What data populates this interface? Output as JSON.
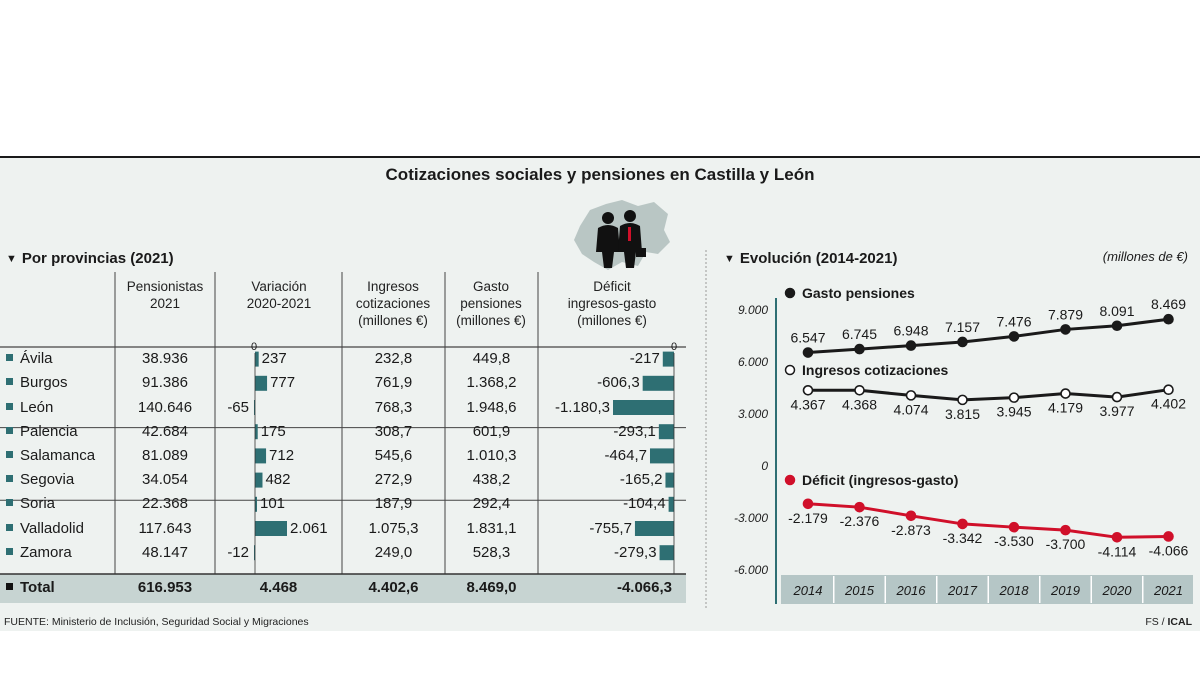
{
  "title": "Cotizaciones sociales y pensiones en Castilla y León",
  "table_section": {
    "title": "Por provincias (2021)",
    "headers": [
      [
        "Pensionistas",
        "2021"
      ],
      [
        "Variación",
        "2020-2021"
      ],
      [
        "Ingresos",
        "cotizaciones",
        "(millones €)"
      ],
      [
        "Gasto",
        "pensiones",
        "(millones €)"
      ],
      [
        "Déficit",
        "ingresos-gasto",
        "(millones €)"
      ]
    ],
    "zero_label": "0",
    "rows": [
      {
        "prov": "Ávila",
        "pens": "38.936",
        "var": "237",
        "var_num": 237,
        "ing": "232,8",
        "gasto": "449,8",
        "def": "-217",
        "def_num": -217
      },
      {
        "prov": "Burgos",
        "pens": "91.386",
        "var": "777",
        "var_num": 777,
        "ing": "761,9",
        "gasto": "1.368,2",
        "def": "-606,3",
        "def_num": -606.3
      },
      {
        "prov": "León",
        "pens": "140.646",
        "var": "-65",
        "var_num": -65,
        "ing": "768,3",
        "gasto": "1.948,6",
        "def": "-1.180,3",
        "def_num": -1180.3
      },
      {
        "prov": "Palencia",
        "pens": "42.684",
        "var": "175",
        "var_num": 175,
        "ing": "308,7",
        "gasto": "601,9",
        "def": "-293,1",
        "def_num": -293.1
      },
      {
        "prov": "Salamanca",
        "pens": "81.089",
        "var": "712",
        "var_num": 712,
        "ing": "545,6",
        "gasto": "1.010,3",
        "def": "-464,7",
        "def_num": -464.7
      },
      {
        "prov": "Segovia",
        "pens": "34.054",
        "var": "482",
        "var_num": 482,
        "ing": "272,9",
        "gasto": "438,2",
        "def": "-165,2",
        "def_num": -165.2
      },
      {
        "prov": "Soria",
        "pens": "22.368",
        "var": "101",
        "var_num": 101,
        "ing": "187,9",
        "gasto": "292,4",
        "def": "-104,4",
        "def_num": -104.4
      },
      {
        "prov": "Valladolid",
        "pens": "117.643",
        "var": "2.061",
        "var_num": 2061,
        "ing": "1.075,3",
        "gasto": "1.831,1",
        "def": "-755,7",
        "def_num": -755.7
      },
      {
        "prov": "Zamora",
        "pens": "48.147",
        "var": "-12",
        "var_num": -12,
        "ing": "249,0",
        "gasto": "528,3",
        "def": "-279,3",
        "def_num": -279.3
      }
    ],
    "total": {
      "prov": "Total",
      "pens": "616.953",
      "var": "4.468",
      "ing": "4.402,6",
      "gasto": "8.469,0",
      "def": "-4.066,3"
    }
  },
  "chart_section": {
    "title": "Evolución (2014-2021)",
    "units": "(millones de €)"
  },
  "chart_data": {
    "type": "line",
    "x": [
      "2014",
      "2015",
      "2016",
      "2017",
      "2018",
      "2019",
      "2020",
      "2021"
    ],
    "series": [
      {
        "name": "Gasto pensiones",
        "values": [
          6547,
          6745,
          6948,
          7157,
          7476,
          7879,
          8091,
          8469
        ],
        "labels": [
          "6.547",
          "6.745",
          "6.948",
          "7.157",
          "7.476",
          "7.879",
          "8.091",
          "8.469"
        ],
        "color": "#1a1a1a",
        "marker": "filled"
      },
      {
        "name": "Ingresos cotizaciones",
        "values": [
          4367,
          4368,
          4074,
          3815,
          3945,
          4179,
          3977,
          4402
        ],
        "labels": [
          "4.367",
          "4.368",
          "4.074",
          "3.815",
          "3.945",
          "4.179",
          "3.977",
          "4.402"
        ],
        "color": "#1a1a1a",
        "marker": "open"
      },
      {
        "name": "Déficit (ingresos-gasto)",
        "values": [
          -2179,
          -2376,
          -2873,
          -3342,
          -3530,
          -3700,
          -4114,
          -4066
        ],
        "labels": [
          "-2.179",
          "-2.376",
          "-2.873",
          "-3.342",
          "-3.530",
          "-3.700",
          "-4.114",
          "-4.066"
        ],
        "color": "#d0102a",
        "marker": "filled"
      }
    ],
    "yticks": [
      9000,
      6000,
      3000,
      0,
      -3000,
      -6000
    ],
    "ytick_labels": [
      "9.000",
      "6.000",
      "3.000",
      "0",
      "-3.000",
      "-6.000"
    ],
    "ylim": [
      -6000,
      9000
    ],
    "grid": false
  },
  "colors": {
    "accent": "#2e6f73",
    "panel": "#eef2f0",
    "axis": "#2e6f73",
    "total_row": "#c7d4d2",
    "deficit": "#d0102a"
  },
  "footer": {
    "source": "FUENTE: Ministerio de Inclusión, Seguridad Social y Migraciones",
    "credit_fs": "FS / ",
    "credit_ical": "ICAL"
  }
}
